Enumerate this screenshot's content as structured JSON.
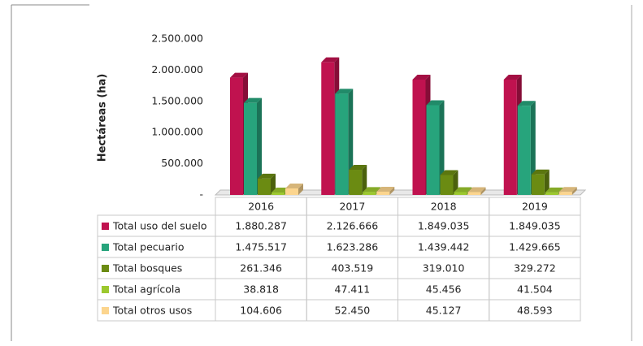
{
  "chart_data": {
    "type": "bar3d",
    "y_axis_label": "Hectáreas (ha)",
    "categories": [
      "2016",
      "2017",
      "2018",
      "2019"
    ],
    "series": [
      {
        "name": "Total uso del suelo",
        "color": "#c0124f",
        "values": [
          1880287,
          2126666,
          1849035,
          1849035
        ],
        "value_labels": [
          "1.880.287",
          "2.126.666",
          "1.849.035",
          "1.849.035"
        ]
      },
      {
        "name": "Total pecuario",
        "color": "#27a47c",
        "values": [
          1475517,
          1623286,
          1439442,
          1429665
        ],
        "value_labels": [
          "1.475.517",
          "1.623.286",
          "1.439.442",
          "1.429.665"
        ]
      },
      {
        "name": "Total bosques",
        "color": "#6b8b12",
        "values": [
          261346,
          403519,
          319010,
          329272
        ],
        "value_labels": [
          "261.346",
          "403.519",
          "319.010",
          "329.272"
        ]
      },
      {
        "name": "Total agrícola",
        "color": "#9cc82e",
        "values": [
          38818,
          47411,
          45456,
          41504
        ],
        "value_labels": [
          "38.818",
          "47.411",
          "45.456",
          "41.504"
        ]
      },
      {
        "name": "Total otros usos",
        "color": "#fcd58e",
        "values": [
          104606,
          52450,
          45127,
          48593
        ],
        "value_labels": [
          "104.606",
          "52.450",
          "45.127",
          "48.593"
        ]
      }
    ],
    "ylim": [
      0,
      2500000
    ],
    "yticks": [
      {
        "value": 0,
        "label": "-"
      },
      {
        "value": 500000,
        "label": "500.000"
      },
      {
        "value": 1000000,
        "label": "1.000.000"
      },
      {
        "value": 1500000,
        "label": "1.500.000"
      },
      {
        "value": 2000000,
        "label": "2.000.000"
      },
      {
        "value": 2500000,
        "label": "2.500.000"
      }
    ]
  }
}
